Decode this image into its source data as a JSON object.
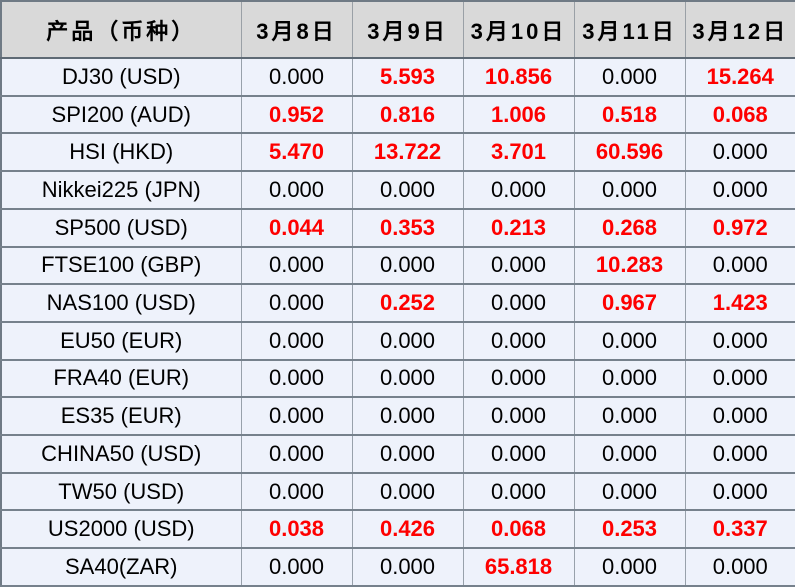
{
  "table": {
    "columns": [
      "产品（币种）",
      "3月8日",
      "3月9日",
      "3月10日",
      "3月11日",
      "3月12日"
    ],
    "rows": [
      {
        "product": "DJ30 (USD)",
        "values": [
          "0.000",
          "5.593",
          "10.856",
          "0.000",
          "15.264"
        ]
      },
      {
        "product": "SPI200 (AUD)",
        "values": [
          "0.952",
          "0.816",
          "1.006",
          "0.518",
          "0.068"
        ]
      },
      {
        "product": "HSI (HKD)",
        "values": [
          "5.470",
          "13.722",
          "3.701",
          "60.596",
          "0.000"
        ]
      },
      {
        "product": "Nikkei225 (JPN)",
        "values": [
          "0.000",
          "0.000",
          "0.000",
          "0.000",
          "0.000"
        ]
      },
      {
        "product": "SP500 (USD)",
        "values": [
          "0.044",
          "0.353",
          "0.213",
          "0.268",
          "0.972"
        ]
      },
      {
        "product": "FTSE100 (GBP)",
        "values": [
          "0.000",
          "0.000",
          "0.000",
          "10.283",
          "0.000"
        ]
      },
      {
        "product": "NAS100 (USD)",
        "values": [
          "0.000",
          "0.252",
          "0.000",
          "0.967",
          "1.423"
        ]
      },
      {
        "product": "EU50 (EUR)",
        "values": [
          "0.000",
          "0.000",
          "0.000",
          "0.000",
          "0.000"
        ]
      },
      {
        "product": "FRA40 (EUR)",
        "values": [
          "0.000",
          "0.000",
          "0.000",
          "0.000",
          "0.000"
        ]
      },
      {
        "product": "ES35 (EUR)",
        "values": [
          "0.000",
          "0.000",
          "0.000",
          "0.000",
          "0.000"
        ]
      },
      {
        "product": "CHINA50 (USD)",
        "values": [
          "0.000",
          "0.000",
          "0.000",
          "0.000",
          "0.000"
        ]
      },
      {
        "product": "TW50 (USD)",
        "values": [
          "0.000",
          "0.000",
          "0.000",
          "0.000",
          "0.000"
        ]
      },
      {
        "product": "US2000 (USD)",
        "values": [
          "0.038",
          "0.426",
          "0.068",
          "0.253",
          "0.337"
        ]
      },
      {
        "product": "SA40(ZAR)",
        "values": [
          "0.000",
          "0.000",
          "65.818",
          "0.000",
          "0.000"
        ]
      }
    ]
  },
  "colors": {
    "highlight_value": "#fe0000",
    "normal_value": "#000000",
    "header_bg": "#d9d9d9",
    "row_bg": "#eef2fb"
  },
  "chart_data": {
    "type": "table",
    "title": "",
    "columns": [
      "产品（币种）",
      "3月8日",
      "3月9日",
      "3月10日",
      "3月11日",
      "3月12日"
    ],
    "rows": [
      {
        "product": "DJ30 (USD)",
        "values": [
          0.0,
          5.593,
          10.856,
          0.0,
          15.264
        ]
      },
      {
        "product": "SPI200 (AUD)",
        "values": [
          0.952,
          0.816,
          1.006,
          0.518,
          0.068
        ]
      },
      {
        "product": "HSI (HKD)",
        "values": [
          5.47,
          13.722,
          3.701,
          60.596,
          0.0
        ]
      },
      {
        "product": "Nikkei225 (JPN)",
        "values": [
          0.0,
          0.0,
          0.0,
          0.0,
          0.0
        ]
      },
      {
        "product": "SP500 (USD)",
        "values": [
          0.044,
          0.353,
          0.213,
          0.268,
          0.972
        ]
      },
      {
        "product": "FTSE100 (GBP)",
        "values": [
          0.0,
          0.0,
          0.0,
          10.283,
          0.0
        ]
      },
      {
        "product": "NAS100 (USD)",
        "values": [
          0.0,
          0.252,
          0.0,
          0.967,
          1.423
        ]
      },
      {
        "product": "EU50 (EUR)",
        "values": [
          0.0,
          0.0,
          0.0,
          0.0,
          0.0
        ]
      },
      {
        "product": "FRA40 (EUR)",
        "values": [
          0.0,
          0.0,
          0.0,
          0.0,
          0.0
        ]
      },
      {
        "product": "ES35 (EUR)",
        "values": [
          0.0,
          0.0,
          0.0,
          0.0,
          0.0
        ]
      },
      {
        "product": "CHINA50 (USD)",
        "values": [
          0.0,
          0.0,
          0.0,
          0.0,
          0.0
        ]
      },
      {
        "product": "TW50 (USD)",
        "values": [
          0.0,
          0.0,
          0.0,
          0.0,
          0.0
        ]
      },
      {
        "product": "US2000 (USD)",
        "values": [
          0.038,
          0.426,
          0.068,
          0.253,
          0.337
        ]
      },
      {
        "product": "SA40(ZAR)",
        "values": [
          0.0,
          0.0,
          65.818,
          0.0,
          0.0
        ]
      }
    ],
    "notes": "Values displayed to 3 decimals; non-zero values rendered bold red, zeros rendered black"
  }
}
